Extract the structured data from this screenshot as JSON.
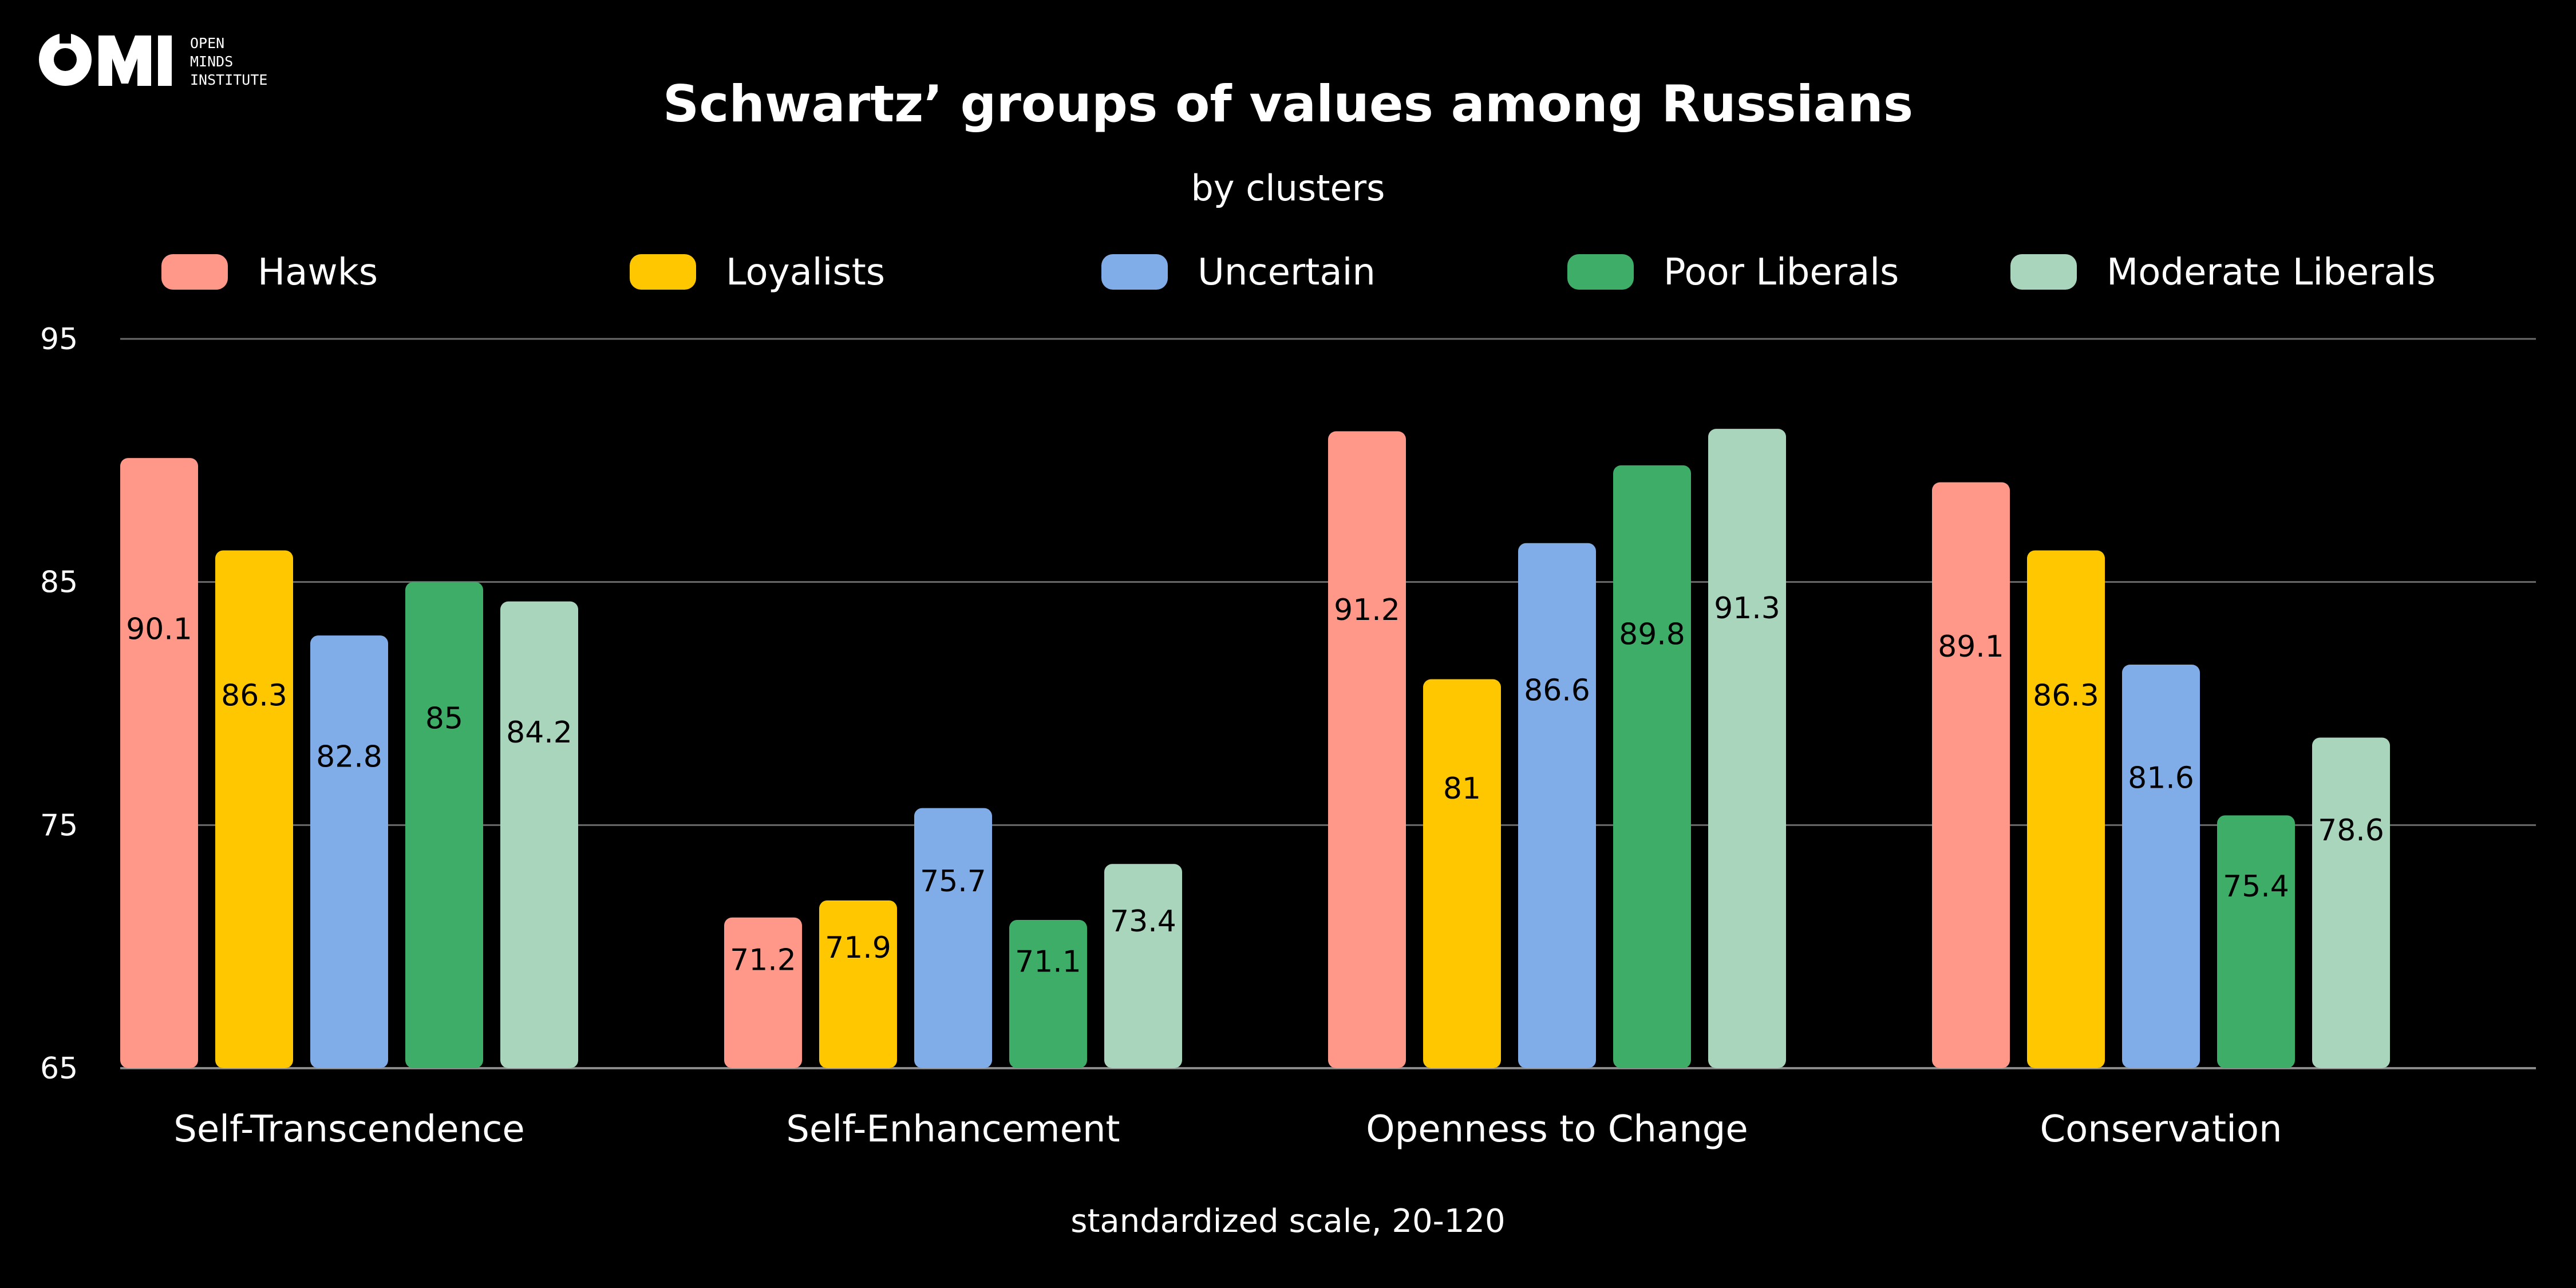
{
  "logo": {
    "mark": "OMI",
    "lines": [
      "OPEN",
      "MINDS",
      "INSTITUTE"
    ]
  },
  "chart_data": {
    "type": "bar",
    "title": "Schwartz’ groups of values among Russians",
    "subtitle": "by clusters",
    "xlabel": "standardized scale, 20-120",
    "ylabel": "",
    "ylim": [
      65,
      95
    ],
    "yticks": [
      65,
      75,
      85,
      95
    ],
    "grid": true,
    "legend_position": "top",
    "categories": [
      "Self-Transcendence",
      "Self-Enhancement",
      "Openness to Change",
      "Conservation"
    ],
    "series": [
      {
        "name": "Hawks",
        "color": "#FF9888",
        "values": [
          90.1,
          71.2,
          91.2,
          89.1
        ]
      },
      {
        "name": "Loyalists",
        "color": "#FFC700",
        "values": [
          86.3,
          71.9,
          81,
          86.3
        ]
      },
      {
        "name": "Uncertain",
        "color": "#80ACE8",
        "values": [
          82.8,
          75.7,
          86.6,
          81.6
        ]
      },
      {
        "name": "Poor Liberals",
        "color": "#3EAD68",
        "values": [
          85,
          71.1,
          89.8,
          75.4
        ]
      },
      {
        "name": "Moderate Liberals",
        "color": "#A8D5BB",
        "values": [
          84.2,
          73.4,
          91.3,
          78.6
        ]
      }
    ]
  }
}
